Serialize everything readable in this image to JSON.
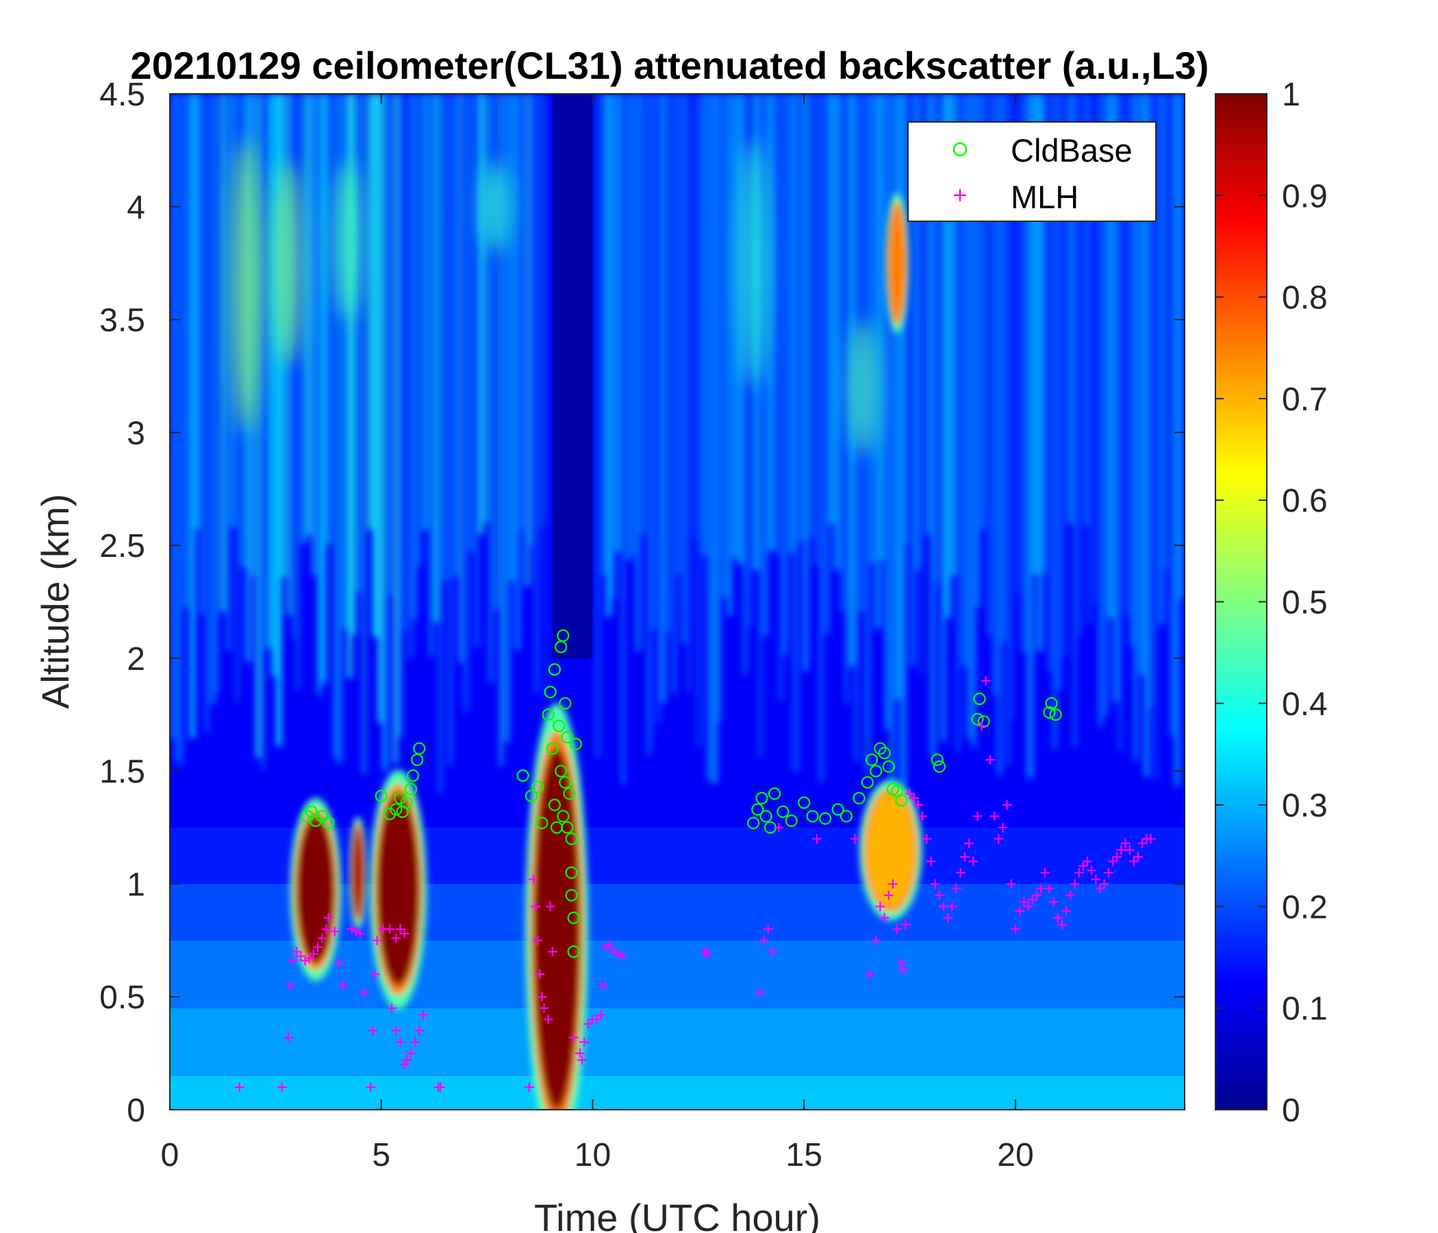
{
  "chart_data": {
    "type": "heatmap",
    "title": "20210129 ceilometer(CL31) attenuated backscatter (a.u.,L3)",
    "xlabel": "Time (UTC hour)",
    "ylabel": "Altitude (km)",
    "xlim": [
      0,
      24
    ],
    "ylim": [
      0,
      4.5
    ],
    "xticks": [
      0,
      5,
      10,
      15,
      20
    ],
    "yticks": [
      0,
      0.5,
      1,
      1.5,
      2,
      2.5,
      3,
      3.5,
      4,
      4.5
    ],
    "xtick_labels": [
      "0",
      "5",
      "10",
      "15",
      "20"
    ],
    "ytick_labels": [
      "0",
      "0.5",
      "1",
      "1.5",
      "2",
      "2.5",
      "3",
      "3.5",
      "4",
      "4.5"
    ],
    "colormap": "jet",
    "clim": [
      0,
      1
    ],
    "colorbar_ticks": [
      0,
      0.1,
      0.2,
      0.3,
      0.4,
      0.5,
      0.6,
      0.7,
      0.8,
      0.9,
      1
    ],
    "colorbar_tick_labels": [
      "0",
      "0.1",
      "0.2",
      "0.3",
      "0.4",
      "0.5",
      "0.6",
      "0.7",
      "0.8",
      "0.9",
      "1"
    ],
    "legend": {
      "location": "top-right",
      "entries": [
        {
          "label": "CldBase",
          "marker": "circle",
          "color": "#00ff00"
        },
        {
          "label": "MLH",
          "marker": "plus",
          "color": "#ff00ff"
        }
      ]
    },
    "high_backscatter_regions": [
      {
        "t0": 3.0,
        "t1": 3.9,
        "z0": 0.65,
        "z1": 1.3,
        "value": 1.0
      },
      {
        "t0": 4.3,
        "t1": 4.6,
        "z0": 0.85,
        "z1": 1.25,
        "value": 0.95
      },
      {
        "t0": 4.9,
        "t1": 5.9,
        "z0": 0.55,
        "z1": 1.4,
        "value": 1.0
      },
      {
        "t0": 8.6,
        "t1": 9.7,
        "z0": 0.0,
        "z1": 1.6,
        "value": 1.0
      },
      {
        "t0": 16.5,
        "t1": 17.6,
        "z0": 0.9,
        "z1": 1.4,
        "value": 0.7
      },
      {
        "t0": 17.0,
        "t1": 17.4,
        "z0": 3.5,
        "z1": 4.0,
        "value": 0.75
      }
    ],
    "series": [
      {
        "name": "CldBase",
        "points": [
          [
            3.25,
            1.3
          ],
          [
            3.35,
            1.32
          ],
          [
            3.45,
            1.28
          ],
          [
            3.6,
            1.3
          ],
          [
            3.75,
            1.27
          ],
          [
            5.0,
            1.39
          ],
          [
            5.2,
            1.31
          ],
          [
            5.35,
            1.33
          ],
          [
            5.45,
            1.38
          ],
          [
            5.5,
            1.32
          ],
          [
            5.6,
            1.36
          ],
          [
            5.7,
            1.42
          ],
          [
            5.75,
            1.48
          ],
          [
            5.85,
            1.55
          ],
          [
            5.9,
            1.6
          ],
          [
            8.35,
            1.48
          ],
          [
            8.55,
            1.39
          ],
          [
            8.7,
            1.43
          ],
          [
            8.8,
            1.27
          ],
          [
            8.95,
            1.75
          ],
          [
            9.0,
            1.85
          ],
          [
            9.05,
            1.6
          ],
          [
            9.1,
            1.95
          ],
          [
            9.1,
            1.35
          ],
          [
            9.15,
            1.25
          ],
          [
            9.2,
            1.7
          ],
          [
            9.25,
            2.05
          ],
          [
            9.25,
            1.5
          ],
          [
            9.3,
            2.1
          ],
          [
            9.3,
            1.3
          ],
          [
            9.35,
            1.8
          ],
          [
            9.35,
            1.45
          ],
          [
            9.4,
            1.65
          ],
          [
            9.4,
            1.25
          ],
          [
            9.45,
            1.4
          ],
          [
            9.5,
            1.2
          ],
          [
            9.5,
            1.05
          ],
          [
            9.55,
            0.85
          ],
          [
            9.55,
            0.7
          ],
          [
            9.5,
            0.95
          ],
          [
            9.6,
            1.62
          ],
          [
            13.8,
            1.27
          ],
          [
            13.9,
            1.33
          ],
          [
            14.0,
            1.38
          ],
          [
            14.1,
            1.3
          ],
          [
            14.2,
            1.25
          ],
          [
            14.3,
            1.4
          ],
          [
            14.5,
            1.32
          ],
          [
            14.7,
            1.28
          ],
          [
            15.0,
            1.36
          ],
          [
            15.2,
            1.3
          ],
          [
            15.5,
            1.29
          ],
          [
            15.8,
            1.33
          ],
          [
            16.0,
            1.3
          ],
          [
            16.3,
            1.38
          ],
          [
            16.5,
            1.45
          ],
          [
            16.6,
            1.55
          ],
          [
            16.7,
            1.5
          ],
          [
            16.8,
            1.6
          ],
          [
            16.9,
            1.58
          ],
          [
            17.0,
            1.52
          ],
          [
            17.1,
            1.42
          ],
          [
            17.2,
            1.41
          ],
          [
            17.3,
            1.37
          ],
          [
            18.15,
            1.55
          ],
          [
            18.2,
            1.52
          ],
          [
            19.1,
            1.73
          ],
          [
            19.15,
            1.82
          ],
          [
            19.25,
            1.72
          ],
          [
            20.8,
            1.76
          ],
          [
            20.85,
            1.8
          ],
          [
            20.95,
            1.75
          ]
        ]
      },
      {
        "name": "MLH",
        "points": [
          [
            1.65,
            0.1
          ],
          [
            2.65,
            0.1
          ],
          [
            2.8,
            0.32
          ],
          [
            2.85,
            0.55
          ],
          [
            2.9,
            0.66
          ],
          [
            3.0,
            0.7
          ],
          [
            3.1,
            0.68
          ],
          [
            3.2,
            0.66
          ],
          [
            3.3,
            0.67
          ],
          [
            3.4,
            0.69
          ],
          [
            3.5,
            0.72
          ],
          [
            3.6,
            0.76
          ],
          [
            3.7,
            0.8
          ],
          [
            3.75,
            0.85
          ],
          [
            3.9,
            0.79
          ],
          [
            4.0,
            0.65
          ],
          [
            4.1,
            0.55
          ],
          [
            4.3,
            0.8
          ],
          [
            4.4,
            0.79
          ],
          [
            4.5,
            0.78
          ],
          [
            4.6,
            0.52
          ],
          [
            4.75,
            0.1
          ],
          [
            4.8,
            0.35
          ],
          [
            4.85,
            0.6
          ],
          [
            4.9,
            0.75
          ],
          [
            5.05,
            0.8
          ],
          [
            5.2,
            0.8
          ],
          [
            5.35,
            0.76
          ],
          [
            5.45,
            0.8
          ],
          [
            5.55,
            0.78
          ],
          [
            5.25,
            0.45
          ],
          [
            5.35,
            0.35
          ],
          [
            5.45,
            0.3
          ],
          [
            5.55,
            0.2
          ],
          [
            5.6,
            0.22
          ],
          [
            5.7,
            0.25
          ],
          [
            5.8,
            0.3
          ],
          [
            5.9,
            0.35
          ],
          [
            6.0,
            0.42
          ],
          [
            6.35,
            0.1
          ],
          [
            6.4,
            0.1
          ],
          [
            8.5,
            0.1
          ],
          [
            8.6,
            1.02
          ],
          [
            8.65,
            0.9
          ],
          [
            8.7,
            0.75
          ],
          [
            8.75,
            0.6
          ],
          [
            8.8,
            0.5
          ],
          [
            8.85,
            0.45
          ],
          [
            8.95,
            0.4
          ],
          [
            9.0,
            0.9
          ],
          [
            9.05,
            0.7
          ],
          [
            9.55,
            0.32
          ],
          [
            9.7,
            0.25
          ],
          [
            9.75,
            0.22
          ],
          [
            9.8,
            0.3
          ],
          [
            9.9,
            0.38
          ],
          [
            10.0,
            0.4
          ],
          [
            10.1,
            0.4
          ],
          [
            10.2,
            0.42
          ],
          [
            10.25,
            0.55
          ],
          [
            10.3,
            0.72
          ],
          [
            10.4,
            0.73
          ],
          [
            10.5,
            0.7
          ],
          [
            10.6,
            0.69
          ],
          [
            10.7,
            0.68
          ],
          [
            12.65,
            0.7
          ],
          [
            12.7,
            0.69
          ],
          [
            13.95,
            0.52
          ],
          [
            14.05,
            0.75
          ],
          [
            14.15,
            0.8
          ],
          [
            14.25,
            0.7
          ],
          [
            14.4,
            1.25
          ],
          [
            15.3,
            1.2
          ],
          [
            16.2,
            1.2
          ],
          [
            16.55,
            0.6
          ],
          [
            16.7,
            0.75
          ],
          [
            16.8,
            0.9
          ],
          [
            16.9,
            0.85
          ],
          [
            17.0,
            0.95
          ],
          [
            17.1,
            1.0
          ],
          [
            17.2,
            0.8
          ],
          [
            17.3,
            0.65
          ],
          [
            17.35,
            0.62
          ],
          [
            17.4,
            0.82
          ],
          [
            17.5,
            1.4
          ],
          [
            17.6,
            1.38
          ],
          [
            17.7,
            1.35
          ],
          [
            17.8,
            1.3
          ],
          [
            17.9,
            1.2
          ],
          [
            18.0,
            1.1
          ],
          [
            18.1,
            1.0
          ],
          [
            18.2,
            0.95
          ],
          [
            18.3,
            0.9
          ],
          [
            18.4,
            0.85
          ],
          [
            18.5,
            0.9
          ],
          [
            18.6,
            0.98
          ],
          [
            18.7,
            1.05
          ],
          [
            18.8,
            1.12
          ],
          [
            18.9,
            1.18
          ],
          [
            19.0,
            1.1
          ],
          [
            19.1,
            1.3
          ],
          [
            19.2,
            1.7
          ],
          [
            19.3,
            1.9
          ],
          [
            19.4,
            1.55
          ],
          [
            19.5,
            1.3
          ],
          [
            19.6,
            1.2
          ],
          [
            19.7,
            1.25
          ],
          [
            19.8,
            1.35
          ],
          [
            19.9,
            1.0
          ],
          [
            20.0,
            0.8
          ],
          [
            20.1,
            0.88
          ],
          [
            20.2,
            0.92
          ],
          [
            20.3,
            0.9
          ],
          [
            20.4,
            0.93
          ],
          [
            20.5,
            0.95
          ],
          [
            20.6,
            0.98
          ],
          [
            20.7,
            1.05
          ],
          [
            20.8,
            0.98
          ],
          [
            20.9,
            0.92
          ],
          [
            21.0,
            0.85
          ],
          [
            21.1,
            0.82
          ],
          [
            21.2,
            0.88
          ],
          [
            21.3,
            0.95
          ],
          [
            21.4,
            1.0
          ],
          [
            21.5,
            1.05
          ],
          [
            21.6,
            1.08
          ],
          [
            21.7,
            1.1
          ],
          [
            21.8,
            1.06
          ],
          [
            21.9,
            1.02
          ],
          [
            22.0,
            0.98
          ],
          [
            22.1,
            1.0
          ],
          [
            22.2,
            1.05
          ],
          [
            22.3,
            1.1
          ],
          [
            22.4,
            1.12
          ],
          [
            22.5,
            1.15
          ],
          [
            22.6,
            1.18
          ],
          [
            22.7,
            1.15
          ],
          [
            22.8,
            1.1
          ],
          [
            22.9,
            1.12
          ],
          [
            23.0,
            1.18
          ],
          [
            23.1,
            1.2
          ],
          [
            23.2,
            1.2
          ]
        ]
      }
    ]
  }
}
